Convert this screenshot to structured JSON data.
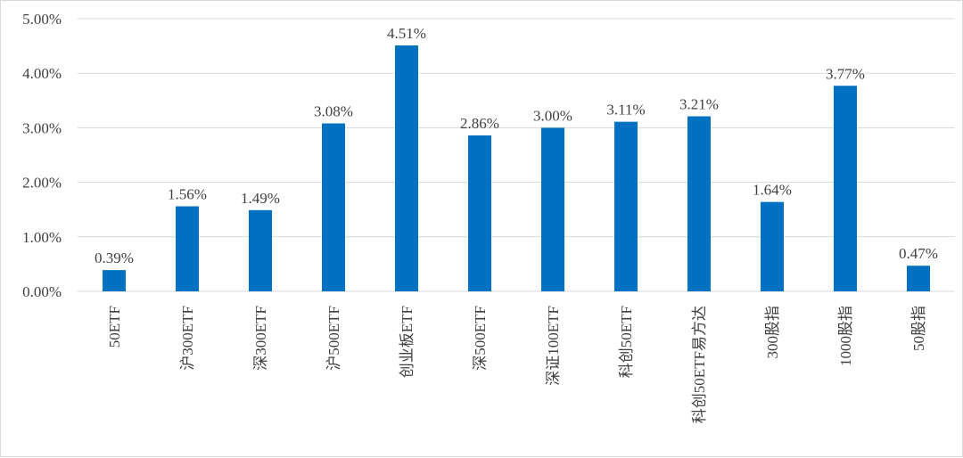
{
  "chart_data": {
    "type": "bar",
    "categories": [
      "50ETF",
      "沪300ETF",
      "深300ETF",
      "沪500ETF",
      "创业板ETF",
      "深500ETF",
      "深证100ETF",
      "科创50ETF",
      "科创50ETF易方达",
      "300股指",
      "1000股指",
      "50股指"
    ],
    "values": [
      0.39,
      1.56,
      1.49,
      3.08,
      4.51,
      2.86,
      3.0,
      3.11,
      3.21,
      1.64,
      3.77,
      0.47
    ],
    "data_labels": [
      "0.39%",
      "1.56%",
      "1.49%",
      "3.08%",
      "4.51%",
      "2.86%",
      "3.00%",
      "3.11%",
      "3.21%",
      "1.64%",
      "3.77%",
      "0.47%"
    ],
    "ylim": [
      0,
      5
    ],
    "yticks": [
      0,
      1,
      2,
      3,
      4,
      5
    ],
    "ytick_labels": [
      "0.00%",
      "1.00%",
      "2.00%",
      "3.00%",
      "4.00%",
      "5.00%"
    ],
    "title": "",
    "xlabel": "",
    "ylabel": "",
    "grid": true,
    "legend": "none",
    "bar_color": "#0070C0"
  }
}
